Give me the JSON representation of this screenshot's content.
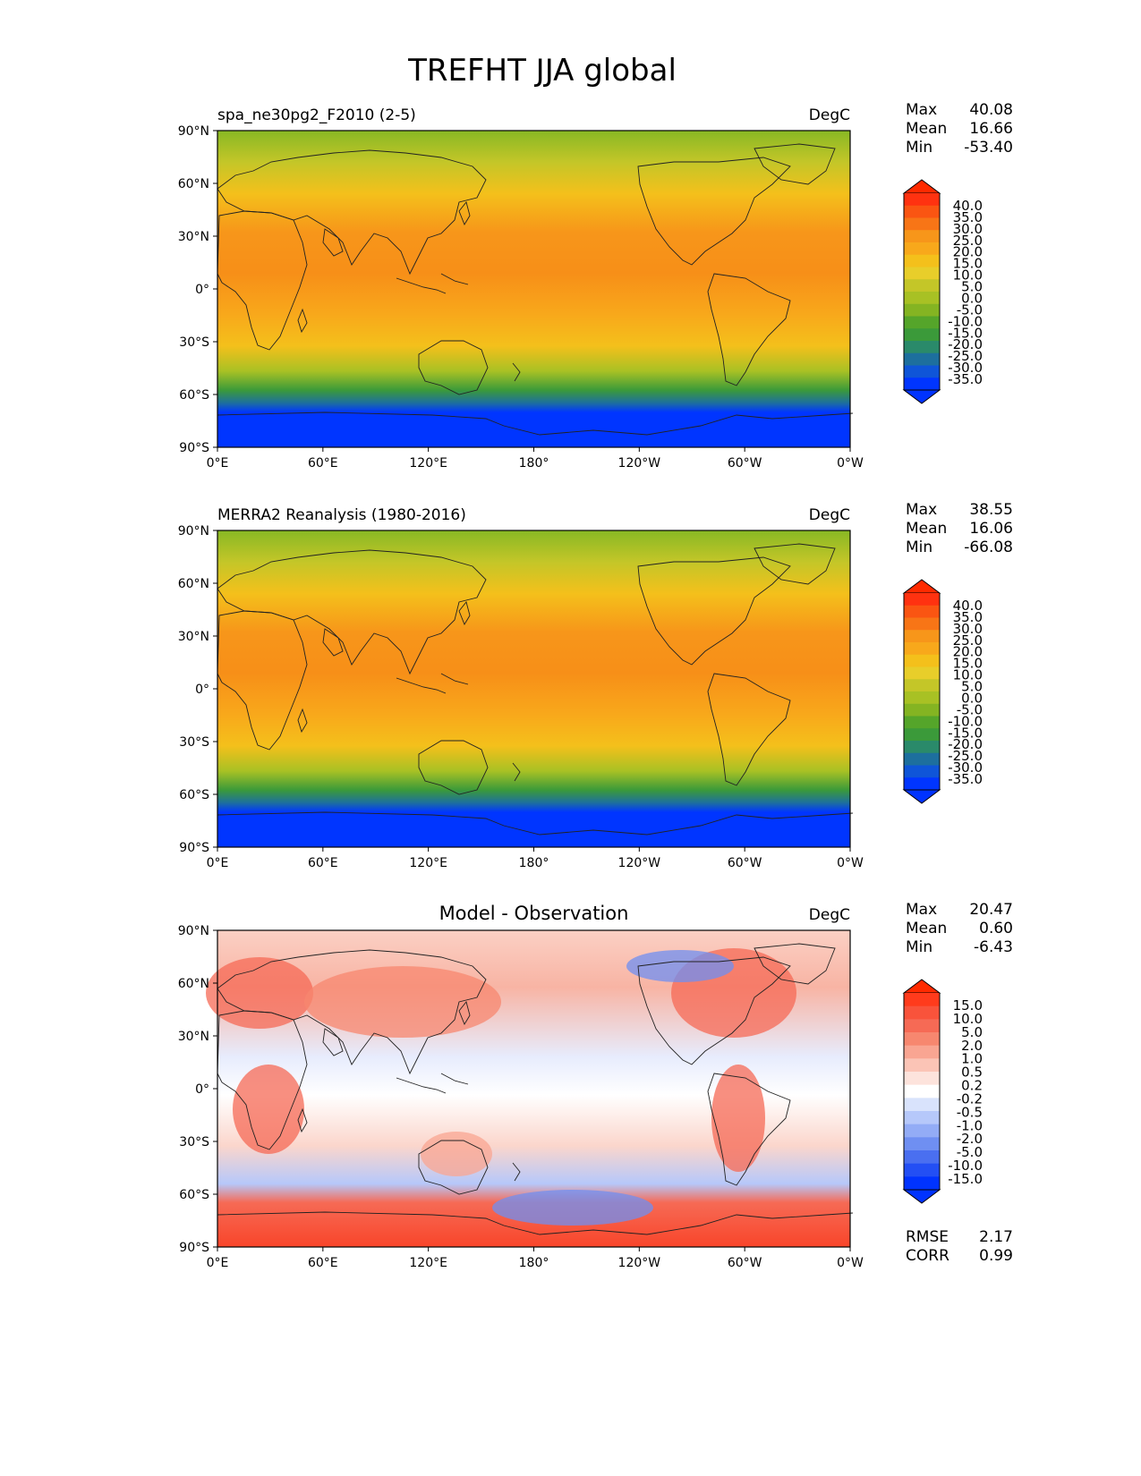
{
  "figure": {
    "title": "TREFHT JJA global"
  },
  "chart_data": [
    {
      "type": "heatmap",
      "title": "spa_ne30pg2_F2010 (2-5)",
      "units": "DegC",
      "stats": {
        "Max": "40.08",
        "Mean": "16.66",
        "Min": "-53.40"
      },
      "x_ticks": [
        "0°E",
        "60°E",
        "120°E",
        "180°",
        "120°W",
        "60°W",
        "0°W"
      ],
      "y_ticks": [
        "90°N",
        "60°N",
        "30°N",
        "0°",
        "30°S",
        "60°S",
        "90°S"
      ],
      "colorbar": {
        "levels": [
          "40.0",
          "35.0",
          "30.0",
          "25.0",
          "20.0",
          "15.0",
          "10.0",
          "5.0",
          "0.0",
          "-5.0",
          "-10.0",
          "-15.0",
          "-20.0",
          "-25.0",
          "-30.0",
          "-35.0"
        ],
        "colors": [
          "#ff3210",
          "#fa5512",
          "#f87516",
          "#f7961a",
          "#f8a81b",
          "#f4c01b",
          "#e8ce2a",
          "#c4c628",
          "#a8c124",
          "#84b422",
          "#55a52a",
          "#3b9a3a",
          "#2a8a6a",
          "#1d6f9e",
          "#0f55d8",
          "#0035ff"
        ],
        "over": "#ff2a00",
        "under": "#0033ff"
      },
      "grid": false
    },
    {
      "type": "heatmap",
      "title": "MERRA2 Reanalysis (1980-2016)",
      "units": "DegC",
      "stats": {
        "Max": "38.55",
        "Mean": "16.06",
        "Min": "-66.08"
      },
      "x_ticks": [
        "0°E",
        "60°E",
        "120°E",
        "180°",
        "120°W",
        "60°W",
        "0°W"
      ],
      "y_ticks": [
        "90°N",
        "60°N",
        "30°N",
        "0°",
        "30°S",
        "60°S",
        "90°S"
      ],
      "colorbar": {
        "levels": [
          "40.0",
          "35.0",
          "30.0",
          "25.0",
          "20.0",
          "15.0",
          "10.0",
          "5.0",
          "0.0",
          "-5.0",
          "-10.0",
          "-15.0",
          "-20.0",
          "-25.0",
          "-30.0",
          "-35.0"
        ],
        "colors": [
          "#ff3210",
          "#fa5512",
          "#f87516",
          "#f7961a",
          "#f8a81b",
          "#f4c01b",
          "#e8ce2a",
          "#c4c628",
          "#a8c124",
          "#84b422",
          "#55a52a",
          "#3b9a3a",
          "#2a8a6a",
          "#1d6f9e",
          "#0f55d8",
          "#0035ff"
        ],
        "over": "#ff2a00",
        "under": "#0033ff"
      },
      "grid": false
    },
    {
      "type": "heatmap",
      "title": "Model - Observation",
      "units": "DegC",
      "stats": {
        "Max": "20.47",
        "Mean": "0.60",
        "Min": "-6.43"
      },
      "metrics": {
        "RMSE": "2.17",
        "CORR": "0.99"
      },
      "x_ticks": [
        "0°E",
        "60°E",
        "120°E",
        "180°",
        "120°W",
        "60°W",
        "0°W"
      ],
      "y_ticks": [
        "90°N",
        "60°N",
        "30°N",
        "0°",
        "30°S",
        "60°S",
        "90°S"
      ],
      "colorbar": {
        "levels": [
          "15.0",
          "10.0",
          "5.0",
          "2.0",
          "1.0",
          "0.5",
          "0.2",
          "-0.2",
          "-0.5",
          "-1.0",
          "-2.0",
          "-5.0",
          "-10.0",
          "-15.0"
        ],
        "colors": [
          "#ff3b1c",
          "#f9533b",
          "#f66a55",
          "#f7876f",
          "#f9a592",
          "#fbc4b6",
          "#fde3dc",
          "#ffffff",
          "#d9e3fc",
          "#b6c8fa",
          "#93acf6",
          "#6f8ff2",
          "#4a6ff0",
          "#234ff4",
          "#0033ff"
        ],
        "over": "#ff2a00",
        "under": "#0033ff"
      },
      "grid": false
    }
  ]
}
